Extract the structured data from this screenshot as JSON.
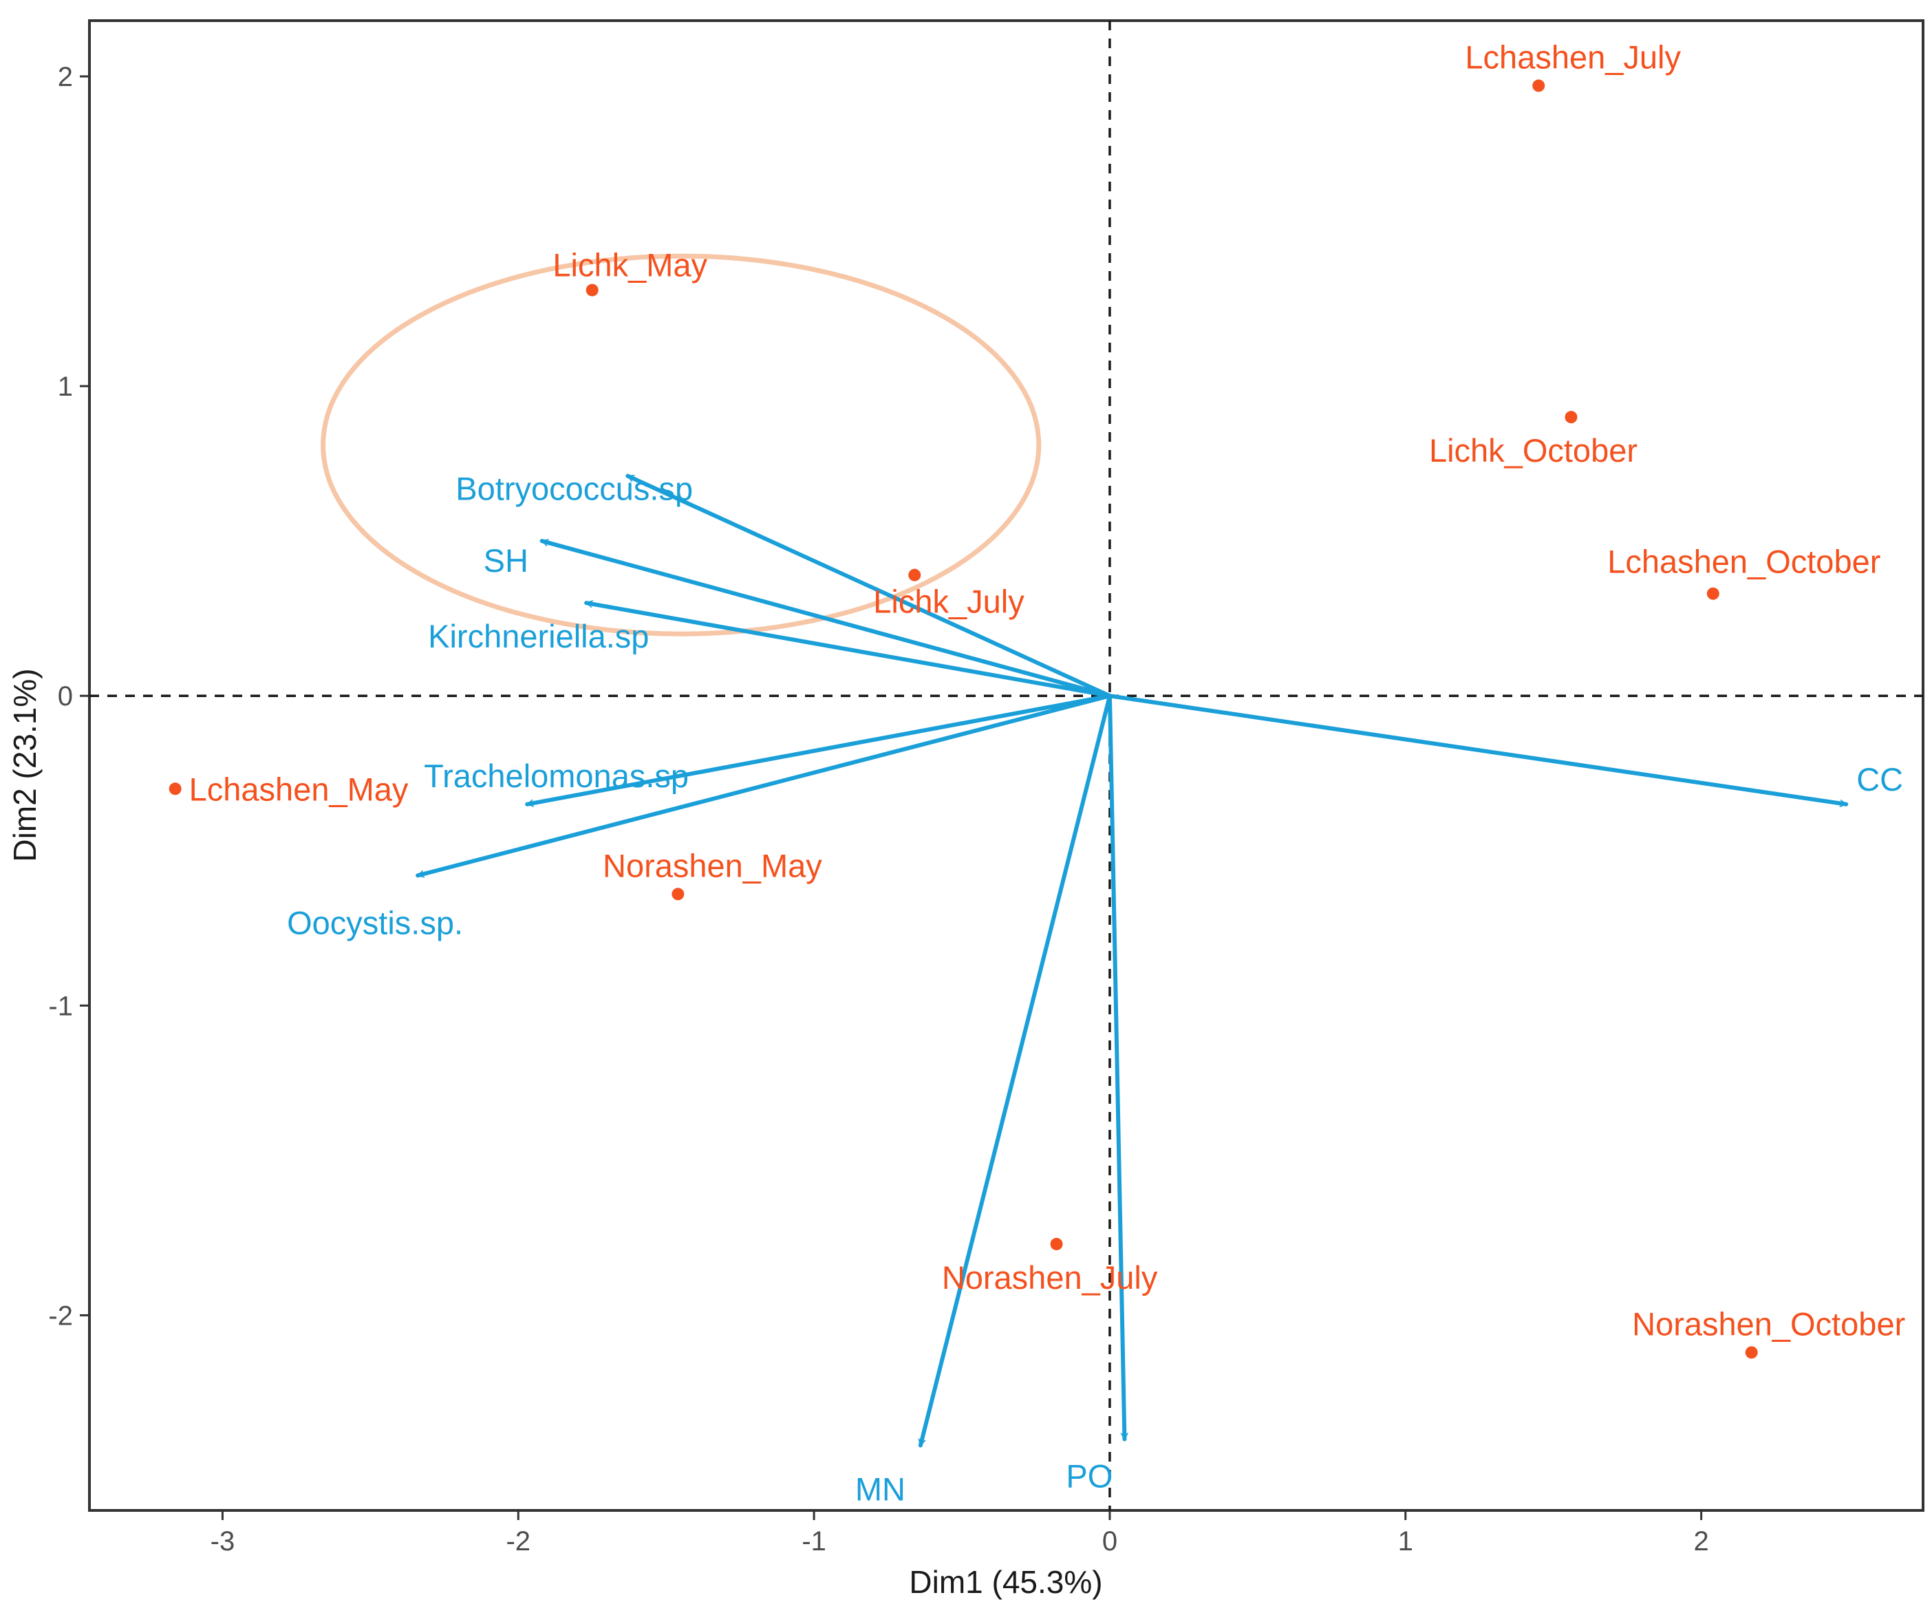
{
  "chart_data": {
    "type": "scatter",
    "subtype": "pca-biplot",
    "title": "",
    "xlabel": "Dim1 (45.3%)",
    "ylabel": "Dim2 (23.1%)",
    "xlim": [
      -3.45,
      2.75
    ],
    "ylim": [
      -2.63,
      2.18
    ],
    "x_ticks": [
      -3,
      -2,
      -1,
      0,
      1,
      2
    ],
    "y_ticks": [
      -2,
      -1,
      0,
      1,
      2
    ],
    "grid": false,
    "reference_lines": {
      "x": 0,
      "y": 0,
      "style": "dashed"
    },
    "individuals": [
      {
        "label": "Lchashen_July",
        "x": 1.45,
        "y": 1.97
      },
      {
        "label": "Lichk_May",
        "x": -1.75,
        "y": 1.31
      },
      {
        "label": "Lichk_October",
        "x": 1.56,
        "y": 0.9
      },
      {
        "label": "Lichk_July",
        "x": -0.66,
        "y": 0.39
      },
      {
        "label": "Lchashen_October",
        "x": 2.04,
        "y": 0.33
      },
      {
        "label": "Lchashen_May",
        "x": -3.16,
        "y": -0.3
      },
      {
        "label": "Norashen_May",
        "x": -1.46,
        "y": -0.64
      },
      {
        "label": "Norashen_July",
        "x": -0.18,
        "y": -1.77
      },
      {
        "label": "Norashen_October",
        "x": 2.17,
        "y": -2.12
      }
    ],
    "variables": [
      {
        "label": "Botryococcus.sp",
        "x": -1.63,
        "y": 0.71
      },
      {
        "label": "SH",
        "x": -1.92,
        "y": 0.5
      },
      {
        "label": "Kirchneriella.sp",
        "x": -1.77,
        "y": 0.3
      },
      {
        "label": "Trachelomonas.sp",
        "x": -1.97,
        "y": -0.35
      },
      {
        "label": "Oocystis.sp.",
        "x": -2.34,
        "y": -0.58
      },
      {
        "label": "CC",
        "x": 2.49,
        "y": -0.35
      },
      {
        "label": "MN",
        "x": -0.64,
        "y": -2.42
      },
      {
        "label": "PO",
        "x": 0.05,
        "y": -2.4
      }
    ],
    "highlight_ellipse": {
      "cx": -1.45,
      "cy": 0.81,
      "rx": 1.21,
      "ry": 0.61
    },
    "colors": {
      "individuals": "#f4511e",
      "variables": "#1a9fd9",
      "ellipse": "#f6c6a6",
      "axis": "#333333",
      "reference": "#1a1a1a"
    }
  }
}
